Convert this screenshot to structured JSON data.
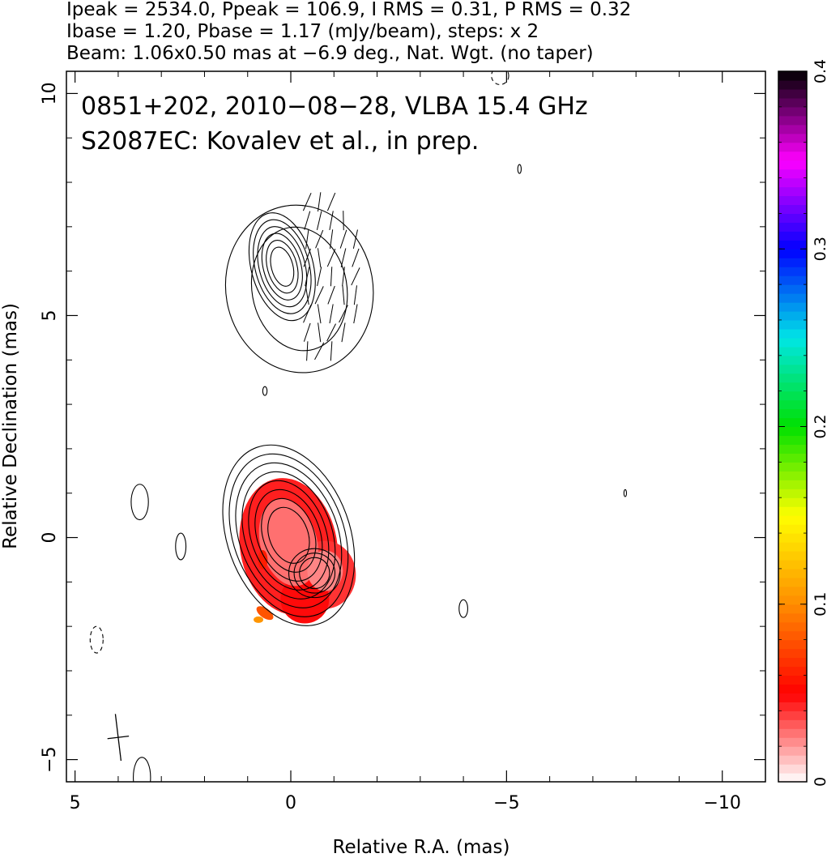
{
  "header": {
    "line1": "Ipeak = 2534.0, Ppeak = 106.9, I RMS = 0.31, P RMS = 0.32",
    "line2": "Ibase = 1.20, Pbase = 1.17 (mJy/beam), steps: x 2",
    "line3": "Beam: 1.06x0.50 mas at −6.9 deg., Nat. Wgt. (no taper)"
  },
  "chart_data": {
    "type": "heatmap",
    "annotation": {
      "line1": "0851+202, 2010−08−28, VLBA 15.4 GHz",
      "line2": "S2087EC: Kovalev et al., in prep."
    },
    "xlabel": "Relative R.A. (mas)",
    "ylabel": "Relative Declination (mas)",
    "xlim": [
      5.2,
      -11
    ],
    "ylim": [
      -5.5,
      10.5
    ],
    "x_ticks": [
      5,
      0,
      -5,
      -10
    ],
    "x_tick_labels": [
      "5",
      "0",
      "−5",
      "−10"
    ],
    "y_ticks": [
      -5,
      0,
      5,
      10
    ],
    "y_tick_labels": [
      "−5",
      "0",
      "5",
      "10"
    ],
    "colorbar": {
      "range": [
        0,
        0.4
      ],
      "ticks": [
        0,
        0.1,
        0.2,
        0.3,
        0.4
      ],
      "tick_labels": [
        "0",
        "0.1",
        "0.2",
        "0.3",
        "0.4"
      ],
      "colors": [
        "#ffffff",
        "#ff0000",
        "#ff8c00",
        "#ffff00",
        "#00e000",
        "#00e6e6",
        "#0000ff",
        "#ff00ff",
        "#000000"
      ]
    },
    "contour_sets": [
      {
        "x": 0.05,
        "y": 0.05,
        "sx": 0.45,
        "sy": 0.65,
        "levels": 8,
        "step": [
          0.14,
          0.2
        ],
        "rot": -20
      },
      {
        "x": -0.55,
        "y": -0.8,
        "sx": 0.35,
        "sy": 0.35,
        "levels": 3,
        "step": [
          0.16,
          0.18
        ],
        "rot": 0
      },
      {
        "x": 0.2,
        "y": 6.1,
        "sx": 0.25,
        "sy": 0.45,
        "levels": 6,
        "step": [
          0.17,
          0.22
        ],
        "rot": -15
      },
      {
        "x": -0.2,
        "y": 5.6,
        "sx": 1.1,
        "sy": 1.4,
        "levels": 2,
        "step": [
          0.25,
          0.22
        ],
        "rot": -10
      }
    ],
    "isolated_contours": [
      {
        "x": 3.5,
        "y": 0.8,
        "rx": 0.2,
        "ry": 0.4
      },
      {
        "x": 2.55,
        "y": -0.2,
        "rx": 0.12,
        "ry": 0.3
      },
      {
        "x": -4.0,
        "y": -1.6,
        "rx": 0.1,
        "ry": 0.2
      },
      {
        "x": 3.45,
        "y": -5.4,
        "rx": 0.2,
        "ry": 0.45
      },
      {
        "x": 0.6,
        "y": 3.3,
        "rx": 0.05,
        "ry": 0.1
      },
      {
        "x": -5.3,
        "y": 8.3,
        "rx": 0.04,
        "ry": 0.1
      },
      {
        "x": -7.75,
        "y": 1.0,
        "rx": 0.03,
        "ry": 0.08
      }
    ],
    "dashed_contours": [
      {
        "x": 4.5,
        "y": -2.3,
        "rx": 0.15,
        "ry": 0.3
      },
      {
        "x": -4.85,
        "y": 10.4,
        "rx": 0.2,
        "ry": 0.2
      }
    ],
    "polarization_region": {
      "x": [
        -1.5,
        -0.1
      ],
      "y": [
        4.2,
        7.6
      ]
    },
    "beam": {
      "x": 4.0,
      "y": -4.5,
      "major": 1.06,
      "minor": 0.5,
      "pa": -6.9
    }
  }
}
